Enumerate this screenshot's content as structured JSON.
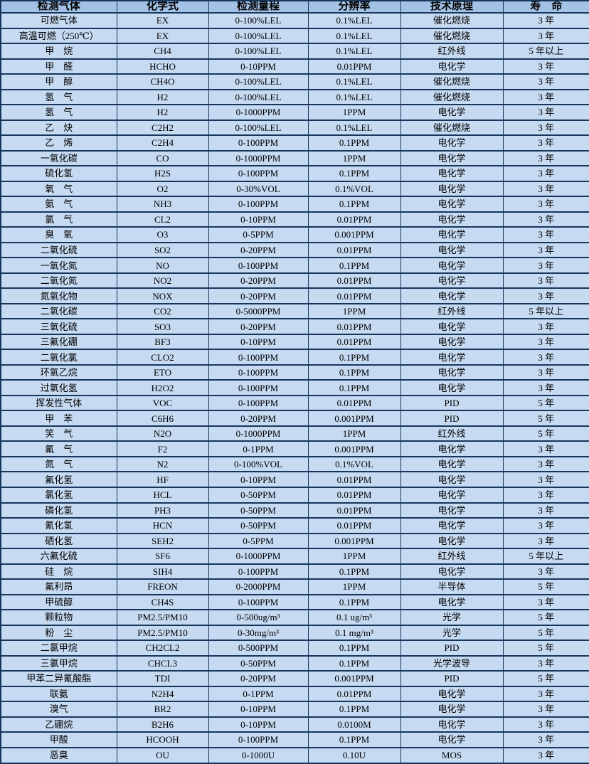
{
  "table": {
    "title_semantic": "gas-detector-specification-table",
    "columns": [
      "检测气体",
      "化学式",
      "检测量程",
      "分辨率",
      "技术原理",
      "寿　命"
    ],
    "rows": [
      [
        "可燃气体",
        "EX",
        "0-100%LEL",
        "0.1%LEL",
        "催化燃烧",
        "3 年"
      ],
      [
        "高温可燃（250℃）",
        "EX",
        "0-100%LEL",
        "0.1%LEL",
        "催化燃烧",
        "3 年"
      ],
      [
        "甲　烷",
        "CH4",
        "0-100%LEL",
        "0.1%LEL",
        "红外线",
        "5 年以上"
      ],
      [
        "甲　醛",
        "HCHO",
        "0-10PPM",
        "0.01PPM",
        "电化学",
        "3 年"
      ],
      [
        "甲　醇",
        "CH4O",
        "0-100%LEL",
        "0.1%LEL",
        "催化燃烧",
        "3 年"
      ],
      [
        "氢　气",
        "H2",
        "0-100%LEL",
        "0.1%LEL",
        "催化燃烧",
        "3 年"
      ],
      [
        "氢　气",
        "H2",
        "0-1000PPM",
        "1PPM",
        "电化学",
        "3 年"
      ],
      [
        "乙　炔",
        "C2H2",
        "0-100%LEL",
        "0.1%LEL",
        "催化燃烧",
        "3 年"
      ],
      [
        "乙　烯",
        "C2H4",
        "0-100PPM",
        "0.1PPM",
        "电化学",
        "3 年"
      ],
      [
        "一氧化碳",
        "CO",
        "0-1000PPM",
        "1PPM",
        "电化学",
        "3 年"
      ],
      [
        "硫化氢",
        "H2S",
        "0-100PPM",
        "0.1PPM",
        "电化学",
        "3 年"
      ],
      [
        "氧　气",
        "O2",
        "0-30%VOL",
        "0.1%VOL",
        "电化学",
        "3 年"
      ],
      [
        "氨　气",
        "NH3",
        "0-100PPM",
        "0.1PPM",
        "电化学",
        "3 年"
      ],
      [
        "氯　气",
        "CL2",
        "0-10PPM",
        "0.01PPM",
        "电化学",
        "3 年"
      ],
      [
        "臭　氧",
        "O3",
        "0-5PPM",
        "0.001PPM",
        "电化学",
        "3 年"
      ],
      [
        "二氧化硫",
        "SO2",
        "0-20PPM",
        "0.01PPM",
        "电化学",
        "3 年"
      ],
      [
        "一氧化氮",
        "NO",
        "0-100PPM",
        "0.1PPM",
        "电化学",
        "3 年"
      ],
      [
        "二氧化氮",
        "NO2",
        "0-20PPM",
        "0.01PPM",
        "电化学",
        "3 年"
      ],
      [
        "氮氧化物",
        "NOX",
        "0-20PPM",
        "0.01PPM",
        "电化学",
        "3 年"
      ],
      [
        "二氧化碳",
        "CO2",
        "0-5000PPM",
        "1PPM",
        "红外线",
        "5 年以上"
      ],
      [
        "三氧化硫",
        "SO3",
        "0-20PPM",
        "0.01PPM",
        "电化学",
        "3 年"
      ],
      [
        "三氟化硼",
        "BF3",
        "0-10PPM",
        "0.01PPM",
        "电化学",
        "3 年"
      ],
      [
        "二氧化氯",
        "CLO2",
        "0-100PPM",
        "0.1PPM",
        "电化学",
        "3 年"
      ],
      [
        "环氧乙烷",
        "ETO",
        "0-100PPM",
        "0.1PPM",
        "电化学",
        "3 年"
      ],
      [
        "过氧化氢",
        "H2O2",
        "0-100PPM",
        "0.1PPM",
        "电化学",
        "3 年"
      ],
      [
        "挥发性气体",
        "VOC",
        "0-100PPM",
        "0.01PPM",
        "PID",
        "5 年"
      ],
      [
        "甲　苯",
        "C6H6",
        "0-20PPM",
        "0.001PPM",
        "PID",
        "5 年"
      ],
      [
        "笑　气",
        "N2O",
        "0-1000PPM",
        "1PPM",
        "红外线",
        "5 年"
      ],
      [
        "氟　气",
        "F2",
        "0-1PPM",
        "0.001PPM",
        "电化学",
        "3 年"
      ],
      [
        "氮　气",
        "N2",
        "0-100%VOL",
        "0.1%VOL",
        "电化学",
        "3 年"
      ],
      [
        "氟化氢",
        "HF",
        "0-10PPM",
        "0.01PPM",
        "电化学",
        "3 年"
      ],
      [
        "氯化氢",
        "HCL",
        "0-50PPM",
        "0.01PPM",
        "电化学",
        "3 年"
      ],
      [
        "磷化氢",
        "PH3",
        "0-50PPM",
        "0.01PPM",
        "电化学",
        "3 年"
      ],
      [
        "氰化氢",
        "HCN",
        "0-50PPM",
        "0.01PPM",
        "电化学",
        "3 年"
      ],
      [
        "硒化氢",
        "SEH2",
        "0-5PPM",
        "0.001PPM",
        "电化学",
        "3 年"
      ],
      [
        "六氟化硫",
        "SF6",
        "0-1000PPM",
        "1PPM",
        "红外线",
        "5 年以上"
      ],
      [
        "硅　烷",
        "SIH4",
        "0-100PPM",
        "0.1PPM",
        "电化学",
        "3 年"
      ],
      [
        "氟利昂",
        "FREON",
        "0-2000PPM",
        "1PPM",
        "半导体",
        "5 年"
      ],
      [
        "甲硫醇",
        "CH4S",
        "0-100PPM",
        "0.1PPM",
        "电化学",
        "3 年"
      ],
      [
        "颗粒物",
        "PM2.5/PM10",
        "0-500ug/m³",
        "0.1 ug/m³",
        "光学",
        "5 年"
      ],
      [
        "粉　尘",
        "PM2.5/PM10",
        "0-30mg/m³",
        "0.1 mg/m³",
        "光学",
        "5 年"
      ],
      [
        "二氯甲烷",
        "CH2CL2",
        "0-500PPM",
        "0.1PPM",
        "PID",
        "5 年"
      ],
      [
        "三氯甲烷",
        "CHCL3",
        "0-50PPM",
        "0.1PPM",
        "光学波导",
        "3 年"
      ],
      [
        "甲苯二异氰酸酯",
        "TDI",
        "0-20PPM",
        "0.001PPM",
        "PID",
        "5 年"
      ],
      [
        "联氨",
        "N2H4",
        "0-1PPM",
        "0.01PPM",
        "电化学",
        "3 年"
      ],
      [
        "溴气",
        "BR2",
        "0-10PPM",
        "0.1PPM",
        "电化学",
        "3 年"
      ],
      [
        "乙硼烷",
        "B2H6",
        "0-10PPM",
        "0.0100M",
        "电化学",
        "3 年"
      ],
      [
        "甲酸",
        "HCOOH",
        "0-100PPM",
        "0.1PPM",
        "电化学",
        "3 年"
      ],
      [
        "恶臭",
        "OU",
        "0-1000U",
        "0.10U",
        "MOS",
        "3 年"
      ]
    ]
  },
  "colors": {
    "header_bg": "#a3c2e5",
    "row_bg": "#c6daf2",
    "border": "#16365c",
    "text": "#000000"
  }
}
